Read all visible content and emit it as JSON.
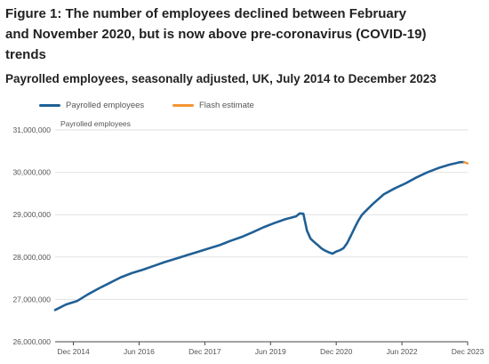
{
  "figure": {
    "title_line1": "Figure 1: The number of employees declined between February",
    "title_line2": "and November 2020, but is now above pre-coronavirus (COVID-19)",
    "title_line3": "trends",
    "subtitle": "Payrolled employees, seasonally adjusted, UK, July 2014 to December 2023"
  },
  "colors": {
    "main_series": "#206095",
    "flash_series": "#f39431",
    "grid": "#e2e2e2",
    "axis": "#444444",
    "text": "#555555"
  },
  "chart_data": {
    "type": "line",
    "title": "Payrolled employees, seasonally adjusted, UK, July 2014 to December 2023",
    "ylabel": "Payrolled employees",
    "xlabel": "",
    "ylim": [
      26000000,
      31000000
    ],
    "yticks": [
      26000000,
      27000000,
      28000000,
      29000000,
      30000000,
      31000000
    ],
    "ytick_labels": [
      "26,000,000",
      "27,000,000",
      "28,000,000",
      "29,000,000",
      "30,000,000",
      "31,000,000"
    ],
    "xlim": [
      "2014-07",
      "2023-12"
    ],
    "xticks": [
      "2014-12",
      "2016-06",
      "2017-12",
      "2019-06",
      "2020-12",
      "2022-06",
      "2023-12"
    ],
    "xtick_labels": [
      "Dec 2014",
      "Jun 2016",
      "Dec 2017",
      "Jun 2019",
      "Dec 2020",
      "Jun 2022",
      "Dec 2023"
    ],
    "grid": "horizontal",
    "legend_position": "top-left",
    "series": [
      {
        "name": "Payrolled employees",
        "color": "#206095",
        "points": [
          [
            "2014-07",
            26750000
          ],
          [
            "2014-10",
            26880000
          ],
          [
            "2015-01",
            26960000
          ],
          [
            "2015-04",
            27120000
          ],
          [
            "2015-07",
            27260000
          ],
          [
            "2015-10",
            27390000
          ],
          [
            "2016-01",
            27520000
          ],
          [
            "2016-04",
            27620000
          ],
          [
            "2016-07",
            27700000
          ],
          [
            "2016-10",
            27790000
          ],
          [
            "2017-01",
            27880000
          ],
          [
            "2017-04",
            27960000
          ],
          [
            "2017-07",
            28040000
          ],
          [
            "2017-10",
            28120000
          ],
          [
            "2018-01",
            28200000
          ],
          [
            "2018-04",
            28280000
          ],
          [
            "2018-07",
            28380000
          ],
          [
            "2018-10",
            28470000
          ],
          [
            "2019-01",
            28580000
          ],
          [
            "2019-04",
            28700000
          ],
          [
            "2019-07",
            28800000
          ],
          [
            "2019-10",
            28890000
          ],
          [
            "2020-01",
            28960000
          ],
          [
            "2020-02",
            29030000
          ],
          [
            "2020-03",
            29020000
          ],
          [
            "2020-04",
            28620000
          ],
          [
            "2020-05",
            28430000
          ],
          [
            "2020-06",
            28350000
          ],
          [
            "2020-07",
            28280000
          ],
          [
            "2020-08",
            28200000
          ],
          [
            "2020-09",
            28150000
          ],
          [
            "2020-10",
            28110000
          ],
          [
            "2020-11",
            28080000
          ],
          [
            "2020-12",
            28130000
          ],
          [
            "2021-01",
            28160000
          ],
          [
            "2021-02",
            28210000
          ],
          [
            "2021-03",
            28330000
          ],
          [
            "2021-04",
            28500000
          ],
          [
            "2021-05",
            28680000
          ],
          [
            "2021-06",
            28850000
          ],
          [
            "2021-07",
            28990000
          ],
          [
            "2021-08",
            29080000
          ],
          [
            "2021-10",
            29250000
          ],
          [
            "2022-01",
            29480000
          ],
          [
            "2022-04",
            29620000
          ],
          [
            "2022-07",
            29740000
          ],
          [
            "2022-10",
            29880000
          ],
          [
            "2023-01",
            30000000
          ],
          [
            "2023-04",
            30100000
          ],
          [
            "2023-07",
            30180000
          ],
          [
            "2023-09",
            30220000
          ],
          [
            "2023-10",
            30240000
          ],
          [
            "2023-11",
            30240000
          ]
        ]
      },
      {
        "name": "Flash estimate",
        "color": "#f39431",
        "points": [
          [
            "2023-11",
            30240000
          ],
          [
            "2023-12",
            30210000
          ]
        ]
      }
    ]
  }
}
